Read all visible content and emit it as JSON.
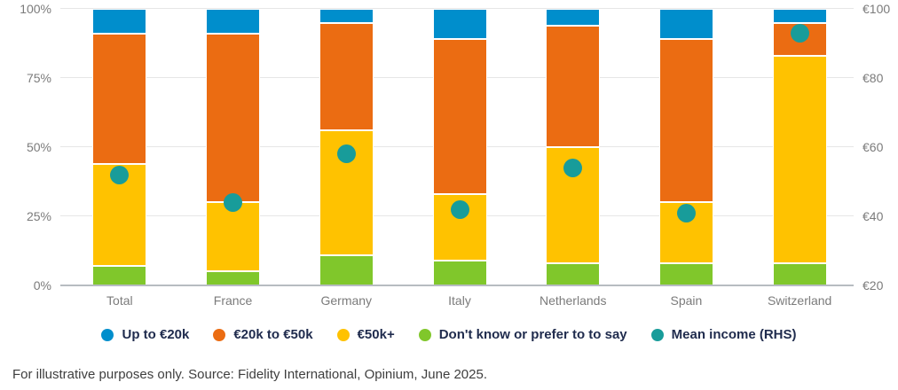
{
  "chart_data": {
    "type": "bar",
    "variant": "stacked-percent-columns-with-mean-scatter",
    "categories": [
      "Total",
      "France",
      "Germany",
      "Italy",
      "Netherlands",
      "Spain",
      "Switzerland"
    ],
    "series": [
      {
        "name": "Up to €20k",
        "color": "#008ecc",
        "values": [
          9,
          9,
          5,
          11,
          6,
          11,
          5
        ]
      },
      {
        "name": "€20k to €50k",
        "color": "#eb6c12",
        "values": [
          47,
          61,
          39,
          56,
          44,
          59,
          12
        ]
      },
      {
        "name": "€50k+",
        "color": "#ffc200",
        "values": [
          37,
          25,
          45,
          24,
          42,
          22,
          75
        ]
      },
      {
        "name": "Don't know or prefer to to say",
        "color": "#80c72b",
        "values": [
          7,
          5,
          11,
          9,
          8,
          8,
          8
        ]
      }
    ],
    "stack_order_bottom_to_top": [
      "Don't know or prefer to to say",
      "€50k+",
      "€20k to €50k",
      "Up to €20k"
    ],
    "scatter_series": {
      "name": "Mean income (RHS)",
      "color": "#189c9a",
      "axis": "right",
      "values": [
        52,
        44,
        58,
        42,
        54,
        41,
        93
      ]
    },
    "left_axis": {
      "min": 0,
      "max": 100,
      "tick_values": [
        0,
        25,
        50,
        75,
        100
      ],
      "tick_labels": [
        "0%",
        "25%",
        "50%",
        "75%",
        "100%"
      ]
    },
    "right_axis": {
      "min": 20,
      "max": 100,
      "tick_values": [
        20,
        40,
        60,
        80,
        100
      ],
      "tick_labels": [
        "€20",
        "€40",
        "€60",
        "€80",
        "€100"
      ]
    },
    "grid": true,
    "legend_position": "bottom"
  },
  "footer": {
    "text": "For illustrative purposes only. Source: Fidelity International, Opinium, June 2025."
  }
}
